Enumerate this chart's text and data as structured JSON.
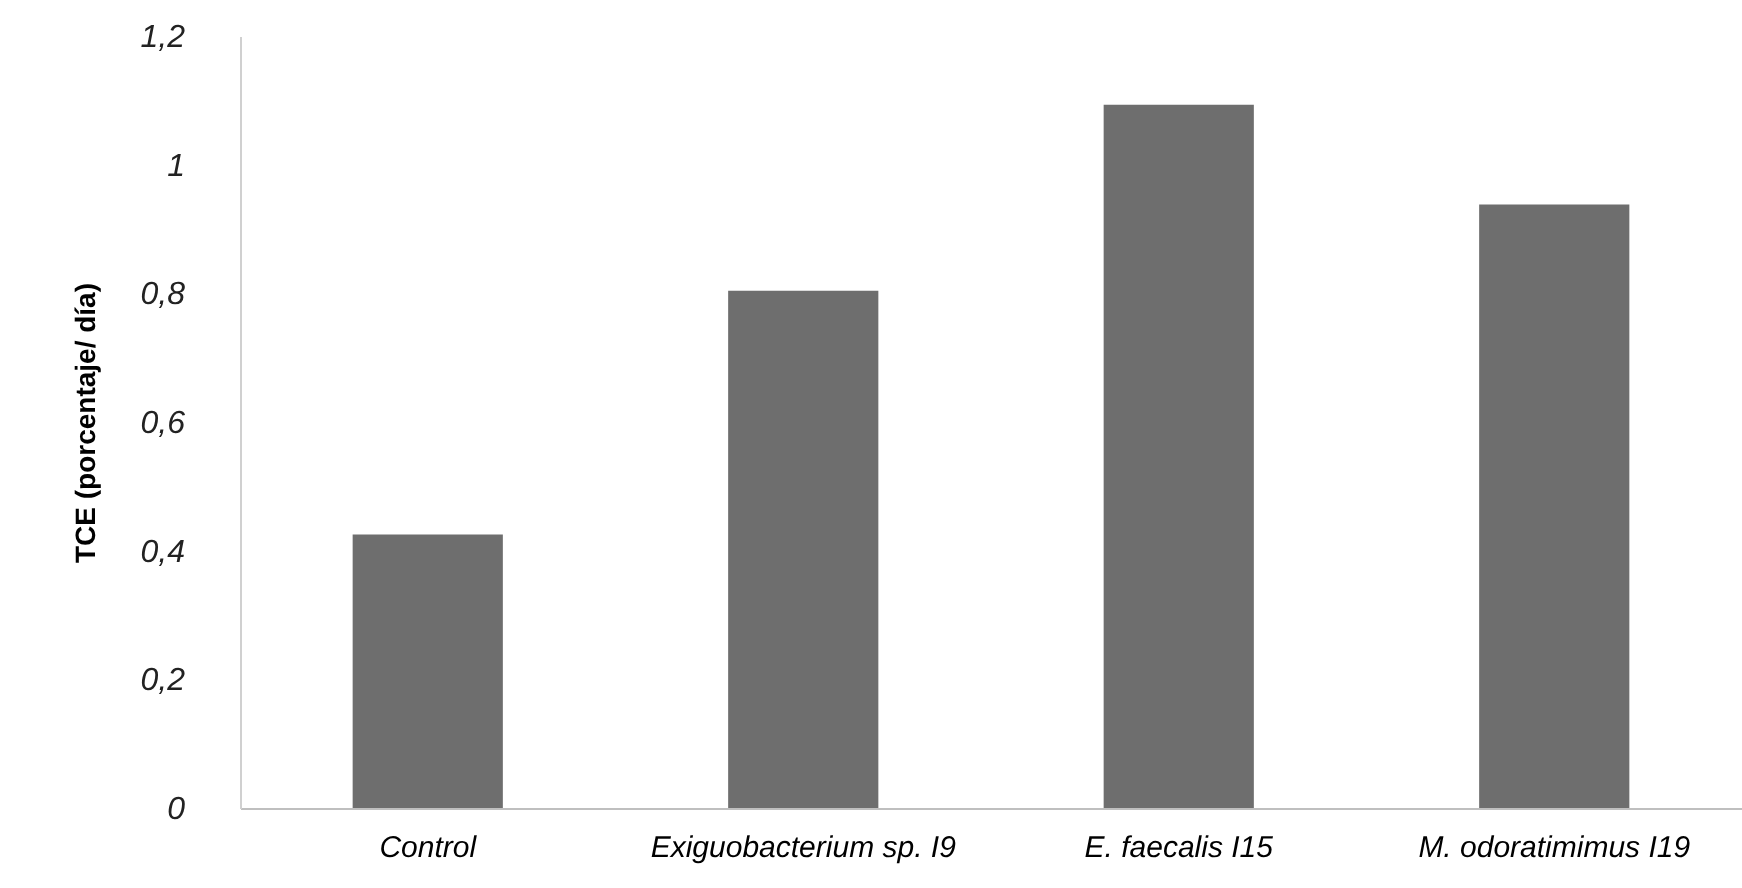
{
  "chart_data": {
    "type": "bar",
    "ylabel": "TCE  (porcentaje/ día)",
    "categories": [
      "Control",
      "Exiguobacterium sp. I9",
      "E. faecalis I15",
      "M. odoratimimus I19"
    ],
    "values": [
      0.425,
      0.804,
      1.093,
      0.938
    ],
    "color": "#6e6e6e",
    "ylim": [
      0,
      1.2
    ],
    "yticks": [
      0,
      {
        "value": 0.2,
        "label": "0,2"
      },
      {
        "value": 0.4,
        "label": "0,4"
      },
      {
        "value": 0.6,
        "label": "0,6"
      },
      {
        "value": 0.8,
        "label": "0,8"
      },
      1,
      {
        "value": 1.2,
        "label": "1,2"
      }
    ],
    "grid": false
  }
}
